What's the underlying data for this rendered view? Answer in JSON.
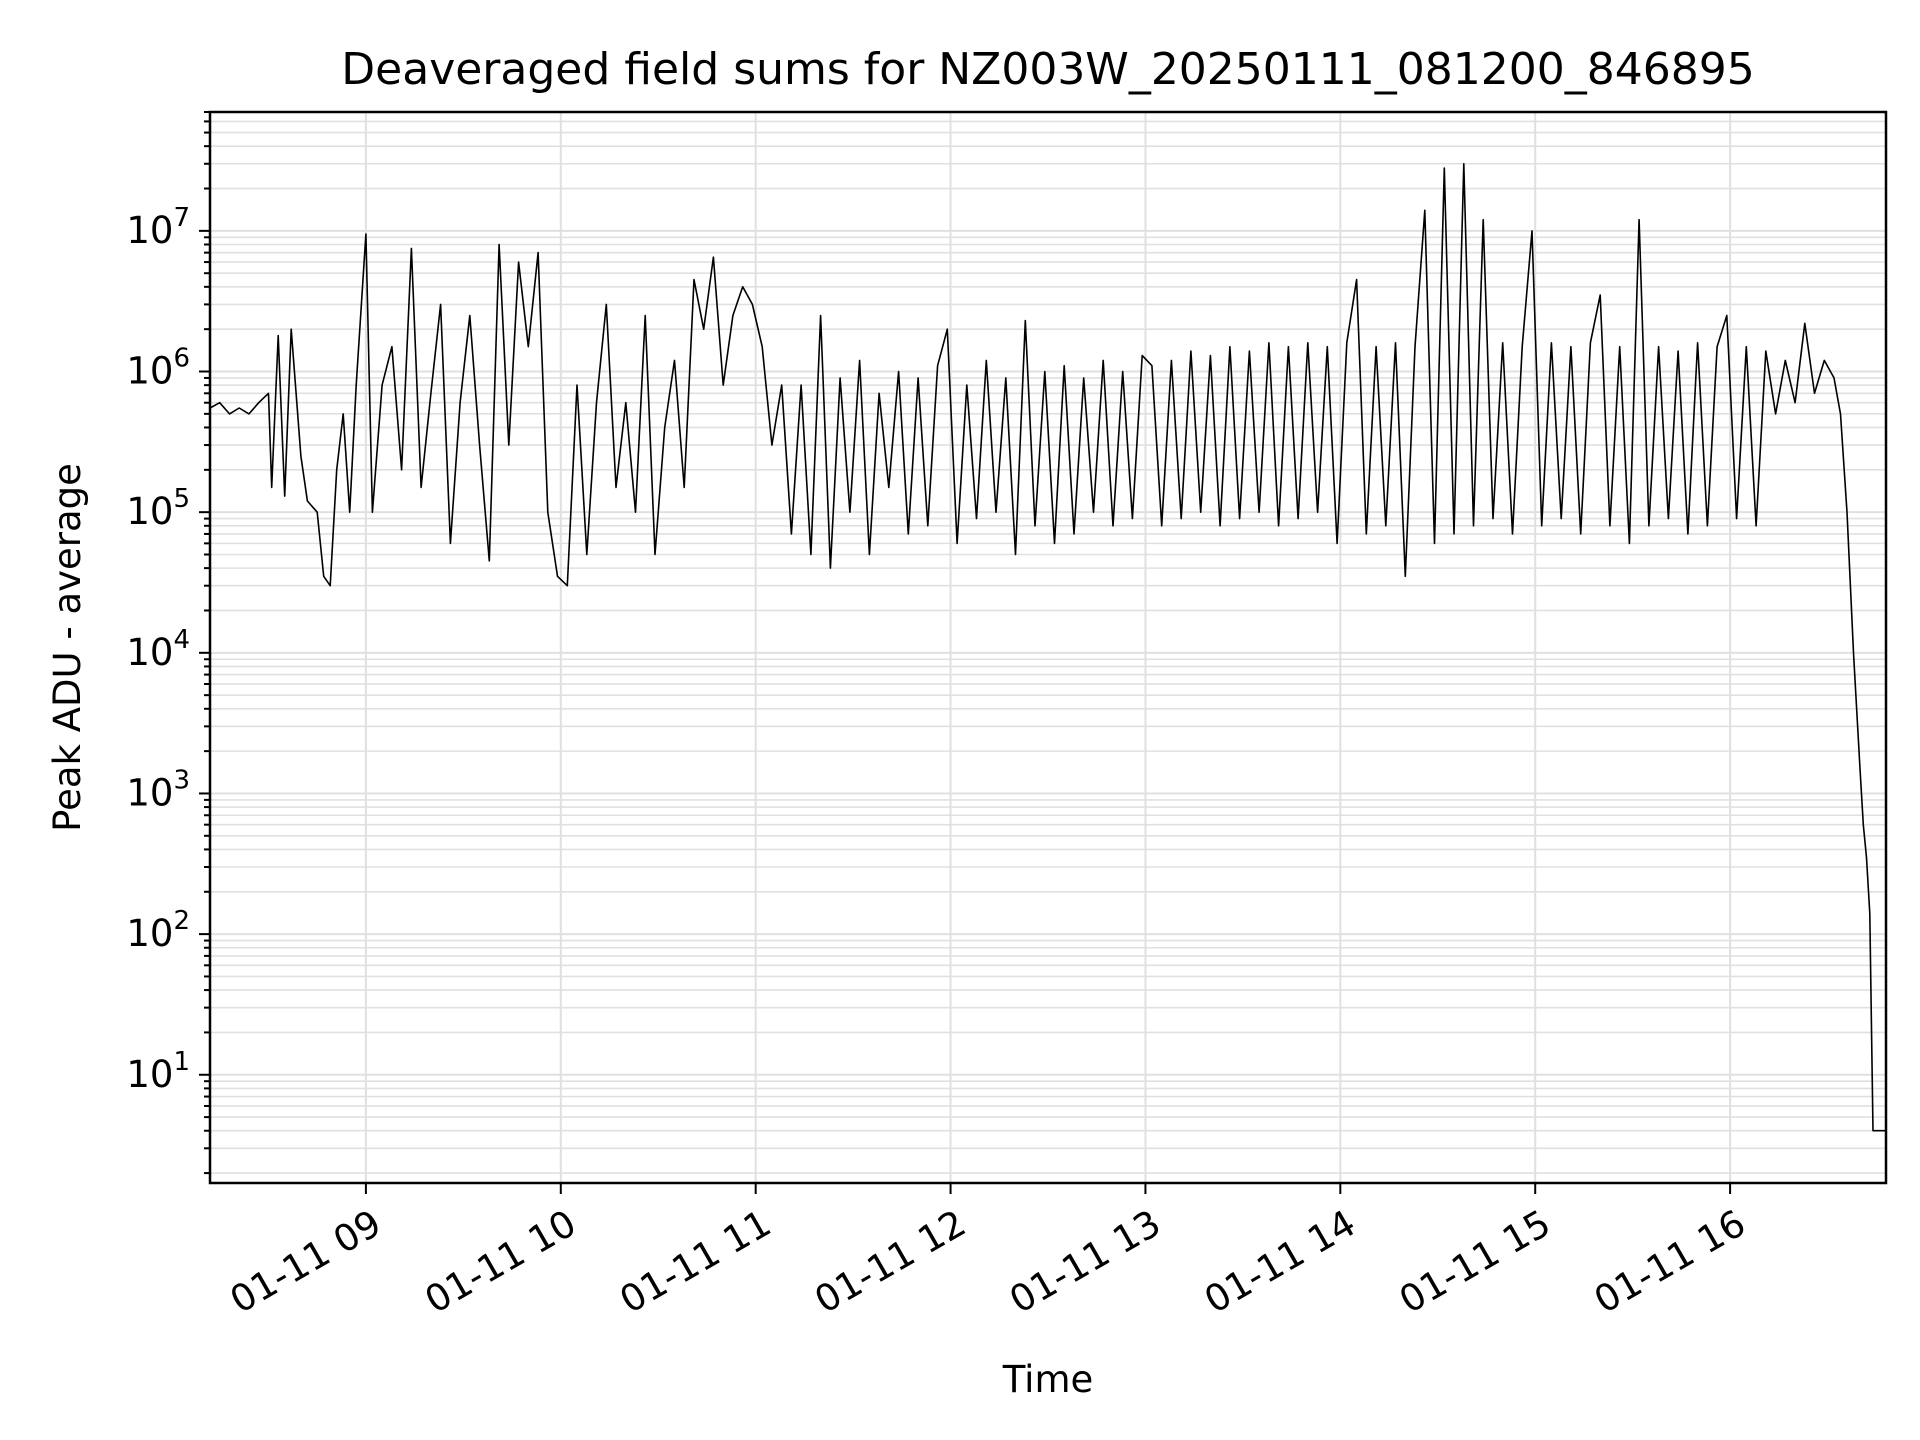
{
  "chart_data": {
    "type": "line",
    "title": "Deaveraged field sums for NZ003W_20250111_081200_846895",
    "xlabel": "Time",
    "ylabel": "Peak ADU - average",
    "yscale": "log",
    "ylim": [
      1.7,
      70000000
    ],
    "xlim": [
      "2025-01-11 08:12",
      "2025-01-11 16:48"
    ],
    "grid": true,
    "line_color": "#000000",
    "grid_color": "#e0e0e0",
    "x_ticks": [
      {
        "value": "2025-01-11 09:00",
        "label": "01-11 09"
      },
      {
        "value": "2025-01-11 10:00",
        "label": "01-11 10"
      },
      {
        "value": "2025-01-11 11:00",
        "label": "01-11 11"
      },
      {
        "value": "2025-01-11 12:00",
        "label": "01-11 12"
      },
      {
        "value": "2025-01-11 13:00",
        "label": "01-11 13"
      },
      {
        "value": "2025-01-11 14:00",
        "label": "01-11 14"
      },
      {
        "value": "2025-01-11 15:00",
        "label": "01-11 15"
      },
      {
        "value": "2025-01-11 16:00",
        "label": "01-11 16"
      }
    ],
    "y_ticks": [
      {
        "value": 10,
        "base": "10",
        "exp": "1"
      },
      {
        "value": 100,
        "base": "10",
        "exp": "2"
      },
      {
        "value": 1000,
        "base": "10",
        "exp": "3"
      },
      {
        "value": 10000,
        "base": "10",
        "exp": "4"
      },
      {
        "value": 100000,
        "base": "10",
        "exp": "5"
      },
      {
        "value": 1000000,
        "base": "10",
        "exp": "6"
      },
      {
        "value": 10000000,
        "base": "10",
        "exp": "7"
      }
    ],
    "series": [
      {
        "x": [
          "2025-01-11 08:12",
          "2025-01-11 08:15",
          "2025-01-11 08:18",
          "2025-01-11 08:21",
          "2025-01-11 08:24",
          "2025-01-11 08:27",
          "2025-01-11 08:30",
          "2025-01-11 08:31",
          "2025-01-11 08:33",
          "2025-01-11 08:35",
          "2025-01-11 08:37",
          "2025-01-11 08:40",
          "2025-01-11 08:42",
          "2025-01-11 08:45",
          "2025-01-11 08:47",
          "2025-01-11 08:49",
          "2025-01-11 08:51",
          "2025-01-11 08:53",
          "2025-01-11 08:55",
          "2025-01-11 08:57",
          "2025-01-11 09:00",
          "2025-01-11 09:02",
          "2025-01-11 09:05",
          "2025-01-11 09:08",
          "2025-01-11 09:11",
          "2025-01-11 09:14",
          "2025-01-11 09:17",
          "2025-01-11 09:20",
          "2025-01-11 09:23",
          "2025-01-11 09:26",
          "2025-01-11 09:29",
          "2025-01-11 09:32",
          "2025-01-11 09:35",
          "2025-01-11 09:38",
          "2025-01-11 09:41",
          "2025-01-11 09:44",
          "2025-01-11 09:47",
          "2025-01-11 09:50",
          "2025-01-11 09:53",
          "2025-01-11 09:56",
          "2025-01-11 09:59",
          "2025-01-11 10:02",
          "2025-01-11 10:05",
          "2025-01-11 10:08",
          "2025-01-11 10:11",
          "2025-01-11 10:14",
          "2025-01-11 10:17",
          "2025-01-11 10:20",
          "2025-01-11 10:23",
          "2025-01-11 10:26",
          "2025-01-11 10:29",
          "2025-01-11 10:32",
          "2025-01-11 10:35",
          "2025-01-11 10:38",
          "2025-01-11 10:41",
          "2025-01-11 10:44",
          "2025-01-11 10:47",
          "2025-01-11 10:50",
          "2025-01-11 10:53",
          "2025-01-11 10:56",
          "2025-01-11 10:59",
          "2025-01-11 11:02",
          "2025-01-11 11:05",
          "2025-01-11 11:08",
          "2025-01-11 11:11",
          "2025-01-11 11:14",
          "2025-01-11 11:17",
          "2025-01-11 11:20",
          "2025-01-11 11:23",
          "2025-01-11 11:26",
          "2025-01-11 11:29",
          "2025-01-11 11:32",
          "2025-01-11 11:35",
          "2025-01-11 11:38",
          "2025-01-11 11:41",
          "2025-01-11 11:44",
          "2025-01-11 11:47",
          "2025-01-11 11:50",
          "2025-01-11 11:53",
          "2025-01-11 11:56",
          "2025-01-11 11:59",
          "2025-01-11 12:02",
          "2025-01-11 12:05",
          "2025-01-11 12:08",
          "2025-01-11 12:11",
          "2025-01-11 12:14",
          "2025-01-11 12:17",
          "2025-01-11 12:20",
          "2025-01-11 12:23",
          "2025-01-11 12:26",
          "2025-01-11 12:29",
          "2025-01-11 12:32",
          "2025-01-11 12:35",
          "2025-01-11 12:38",
          "2025-01-11 12:41",
          "2025-01-11 12:44",
          "2025-01-11 12:47",
          "2025-01-11 12:50",
          "2025-01-11 12:53",
          "2025-01-11 12:56",
          "2025-01-11 12:59",
          "2025-01-11 13:02",
          "2025-01-11 13:05",
          "2025-01-11 13:08",
          "2025-01-11 13:11",
          "2025-01-11 13:14",
          "2025-01-11 13:17",
          "2025-01-11 13:20",
          "2025-01-11 13:23",
          "2025-01-11 13:26",
          "2025-01-11 13:29",
          "2025-01-11 13:32",
          "2025-01-11 13:35",
          "2025-01-11 13:38",
          "2025-01-11 13:41",
          "2025-01-11 13:44",
          "2025-01-11 13:47",
          "2025-01-11 13:50",
          "2025-01-11 13:53",
          "2025-01-11 13:56",
          "2025-01-11 13:59",
          "2025-01-11 14:02",
          "2025-01-11 14:05",
          "2025-01-11 14:08",
          "2025-01-11 14:11",
          "2025-01-11 14:14",
          "2025-01-11 14:17",
          "2025-01-11 14:20",
          "2025-01-11 14:23",
          "2025-01-11 14:26",
          "2025-01-11 14:29",
          "2025-01-11 14:32",
          "2025-01-11 14:35",
          "2025-01-11 14:38",
          "2025-01-11 14:41",
          "2025-01-11 14:44",
          "2025-01-11 14:47",
          "2025-01-11 14:50",
          "2025-01-11 14:53",
          "2025-01-11 14:56",
          "2025-01-11 14:59",
          "2025-01-11 15:02",
          "2025-01-11 15:05",
          "2025-01-11 15:08",
          "2025-01-11 15:11",
          "2025-01-11 15:14",
          "2025-01-11 15:17",
          "2025-01-11 15:20",
          "2025-01-11 15:23",
          "2025-01-11 15:26",
          "2025-01-11 15:29",
          "2025-01-11 15:32",
          "2025-01-11 15:35",
          "2025-01-11 15:38",
          "2025-01-11 15:41",
          "2025-01-11 15:44",
          "2025-01-11 15:47",
          "2025-01-11 15:50",
          "2025-01-11 15:53",
          "2025-01-11 15:56",
          "2025-01-11 15:59",
          "2025-01-11 16:02",
          "2025-01-11 16:05",
          "2025-01-11 16:08",
          "2025-01-11 16:11",
          "2025-01-11 16:14",
          "2025-01-11 16:17",
          "2025-01-11 16:20",
          "2025-01-11 16:23",
          "2025-01-11 16:26",
          "2025-01-11 16:29",
          "2025-01-11 16:32",
          "2025-01-11 16:34",
          "2025-01-11 16:36",
          "2025-01-11 16:38",
          "2025-01-11 16:40",
          "2025-01-11 16:41",
          "2025-01-11 16:42",
          "2025-01-11 16:43",
          "2025-01-11 16:44",
          "2025-01-11 16:45",
          "2025-01-11 16:46",
          "2025-01-11 16:48"
        ],
        "y": [
          550000,
          600000,
          500000,
          550000,
          500000,
          600000,
          700000,
          150000,
          1800000,
          130000,
          2000000,
          250000,
          120000,
          100000,
          35000,
          30000,
          200000,
          500000,
          100000,
          800000,
          9500000,
          100000,
          800000,
          1500000,
          200000,
          7500000,
          150000,
          700000,
          3000000,
          60000,
          600000,
          2500000,
          300000,
          45000,
          8000000,
          300000,
          6000000,
          1500000,
          7000000,
          100000,
          35000,
          30000,
          800000,
          50000,
          600000,
          3000000,
          150000,
          600000,
          100000,
          2500000,
          50000,
          400000,
          1200000,
          150000,
          4500000,
          2000000,
          6500000,
          800000,
          2500000,
          4000000,
          3000000,
          1500000,
          300000,
          800000,
          70000,
          800000,
          50000,
          2500000,
          40000,
          900000,
          100000,
          1200000,
          50000,
          700000,
          150000,
          1000000,
          70000,
          900000,
          80000,
          1100000,
          2000000,
          60000,
          800000,
          90000,
          1200000,
          100000,
          900000,
          50000,
          2300000,
          80000,
          1000000,
          60000,
          1100000,
          70000,
          900000,
          100000,
          1200000,
          80000,
          1000000,
          90000,
          1300000,
          1100000,
          80000,
          1200000,
          90000,
          1400000,
          100000,
          1300000,
          80000,
          1500000,
          90000,
          1400000,
          100000,
          1600000,
          80000,
          1500000,
          90000,
          1600000,
          100000,
          1500000,
          60000,
          1600000,
          4500000,
          70000,
          1500000,
          80000,
          1600000,
          35000,
          1500000,
          14000000,
          60000,
          28000000,
          70000,
          30000000,
          80000,
          12000000,
          90000,
          1600000,
          70000,
          1500000,
          10000000,
          80000,
          1600000,
          90000,
          1500000,
          70000,
          1600000,
          3500000,
          80000,
          1500000,
          60000,
          12000000,
          80000,
          1500000,
          90000,
          1400000,
          70000,
          1600000,
          80000,
          1500000,
          2500000,
          90000,
          1500000,
          80000,
          1400000,
          500000,
          1200000,
          600000,
          2200000,
          700000,
          1200000,
          900000,
          500000,
          100000,
          10000,
          1500,
          600,
          350,
          140,
          4,
          4,
          4,
          4
        ]
      }
    ]
  }
}
